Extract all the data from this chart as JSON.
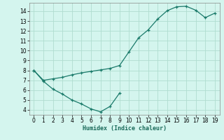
{
  "xlabel": "Humidex (Indice chaleur)",
  "bg_color": "#d4f5ee",
  "grid_color": "#b0ddd0",
  "line_color": "#1a7a6a",
  "xlim": [
    -0.5,
    19.5
  ],
  "ylim": [
    3.5,
    14.85
  ],
  "xticks": [
    0,
    1,
    2,
    3,
    4,
    5,
    6,
    7,
    8,
    9,
    10,
    11,
    12,
    13,
    14,
    15,
    16,
    17,
    18,
    19
  ],
  "yticks": [
    4,
    5,
    6,
    7,
    8,
    9,
    10,
    11,
    12,
    13,
    14
  ],
  "curve1_x": [
    0,
    1,
    2,
    3,
    4,
    5,
    6,
    7,
    8,
    9,
    10,
    11,
    12,
    13,
    14,
    15,
    16,
    17,
    18,
    19
  ],
  "curve1_y": [
    8.0,
    7.0,
    7.15,
    7.3,
    7.55,
    7.75,
    7.9,
    8.05,
    8.2,
    8.5,
    9.9,
    11.3,
    12.1,
    13.2,
    14.05,
    14.45,
    14.5,
    14.1,
    13.35,
    13.8
  ],
  "curve2_x": [
    0,
    1,
    2,
    3,
    4,
    5,
    6,
    7,
    8,
    9
  ],
  "curve2_y": [
    8.0,
    6.9,
    6.1,
    5.6,
    5.0,
    4.6,
    4.1,
    3.8,
    4.35,
    5.7
  ]
}
